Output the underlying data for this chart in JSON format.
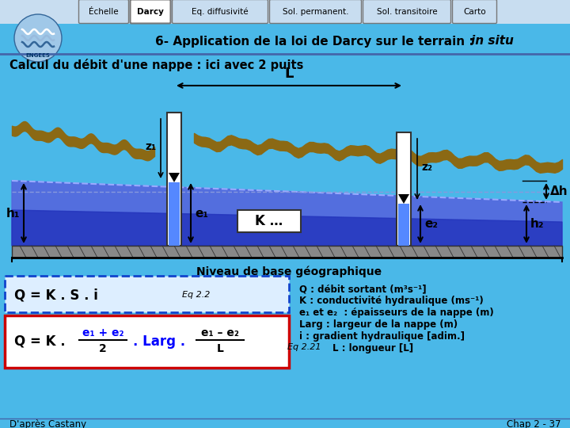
{
  "bg_color": "#4ab8e8",
  "tab_labels": [
    "Échelle",
    "Darcy",
    "Eq. diffusivité",
    "Sol. permanent.",
    "Sol. transitoire",
    "Carto"
  ],
  "tab_active": 1,
  "white": "#ffffff",
  "text_dark": "#000000",
  "text_blue": "#0000ff",
  "red_border": "#cc0000",
  "dashed_blue": "#1155cc",
  "ground_color": "#8B6914",
  "aquifer_light": "#5566dd",
  "aquifer_dark": "#2233bb",
  "gravel_color": "#aaaaaa"
}
